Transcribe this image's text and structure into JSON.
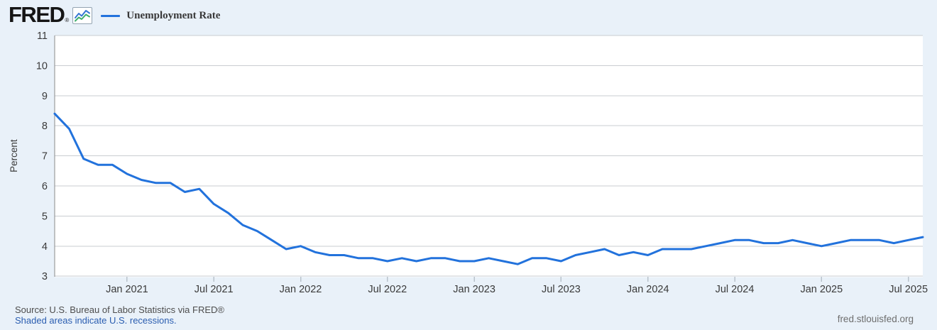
{
  "header": {
    "logo_text": "FRED",
    "logo_registered": "®",
    "legend": {
      "series_label": "Unemployment Rate"
    }
  },
  "footer": {
    "source_line": "Source: U.S. Bureau of Labor Statistics via FRED®",
    "recession_note": "Shaded areas indicate U.S. recessions.",
    "site_url": "fred.stlouisfed.org"
  },
  "colors": {
    "accent_line": "#2272dc",
    "link": "#2a5db0",
    "background": "#e9f1f9",
    "plot_background": "#ffffff",
    "gridline": "#c9cdd1",
    "axis_line": "#8a8a8a",
    "tick_mark": "#b9c2cc",
    "logo_icon_blue": "#3577d4",
    "logo_icon_green": "#3fae6d"
  },
  "chart_data": {
    "type": "line",
    "title": "Unemployment Rate",
    "ylabel": "Percent",
    "xlabel": "",
    "ylim": [
      3,
      11
    ],
    "yticks": [
      3,
      4,
      5,
      6,
      7,
      8,
      9,
      10,
      11
    ],
    "grid": true,
    "legend_position": "top-left",
    "x_months": [
      "Aug 2020",
      "Sep 2020",
      "Oct 2020",
      "Nov 2020",
      "Dec 2020",
      "Jan 2021",
      "Feb 2021",
      "Mar 2021",
      "Apr 2021",
      "May 2021",
      "Jun 2021",
      "Jul 2021",
      "Aug 2021",
      "Sep 2021",
      "Oct 2021",
      "Nov 2021",
      "Dec 2021",
      "Jan 2022",
      "Feb 2022",
      "Mar 2022",
      "Apr 2022",
      "May 2022",
      "Jun 2022",
      "Jul 2022",
      "Aug 2022",
      "Sep 2022",
      "Oct 2022",
      "Nov 2022",
      "Dec 2022",
      "Jan 2023",
      "Feb 2023",
      "Mar 2023",
      "Apr 2023",
      "May 2023",
      "Jun 2023",
      "Jul 2023",
      "Aug 2023",
      "Sep 2023",
      "Oct 2023",
      "Nov 2023",
      "Dec 2023",
      "Jan 2024",
      "Feb 2024",
      "Mar 2024",
      "Apr 2024",
      "May 2024",
      "Jun 2024",
      "Jul 2024",
      "Aug 2024",
      "Sep 2024",
      "Oct 2024",
      "Nov 2024",
      "Dec 2024",
      "Jan 2025",
      "Feb 2025",
      "Mar 2025",
      "Apr 2025",
      "May 2025",
      "Jun 2025",
      "Jul 2025",
      "Aug 2025"
    ],
    "series": [
      {
        "name": "Unemployment Rate",
        "color": "#2272dc",
        "values": [
          8.4,
          7.9,
          6.9,
          6.7,
          6.7,
          6.4,
          6.2,
          6.1,
          6.1,
          5.8,
          5.9,
          5.4,
          5.1,
          4.7,
          4.5,
          4.2,
          3.9,
          4.0,
          3.8,
          3.7,
          3.7,
          3.6,
          3.6,
          3.5,
          3.6,
          3.5,
          3.6,
          3.6,
          3.5,
          3.5,
          3.6,
          3.5,
          3.4,
          3.6,
          3.6,
          3.5,
          3.7,
          3.8,
          3.9,
          3.7,
          3.8,
          3.7,
          3.9,
          3.9,
          3.9,
          4.0,
          4.1,
          4.2,
          4.2,
          4.1,
          4.1,
          4.2,
          4.1,
          4.0,
          4.1,
          4.2,
          4.2,
          4.2,
          4.1,
          4.2,
          4.3
        ]
      }
    ],
    "xticks": [
      {
        "index": 5,
        "label": "Jan 2021"
      },
      {
        "index": 11,
        "label": "Jul 2021"
      },
      {
        "index": 17,
        "label": "Jan 2022"
      },
      {
        "index": 23,
        "label": "Jul 2022"
      },
      {
        "index": 29,
        "label": "Jan 2023"
      },
      {
        "index": 35,
        "label": "Jul 2023"
      },
      {
        "index": 41,
        "label": "Jan 2024"
      },
      {
        "index": 47,
        "label": "Jul 2024"
      },
      {
        "index": 53,
        "label": "Jan 2025"
      },
      {
        "index": 59,
        "label": "Jul 2025"
      }
    ]
  }
}
